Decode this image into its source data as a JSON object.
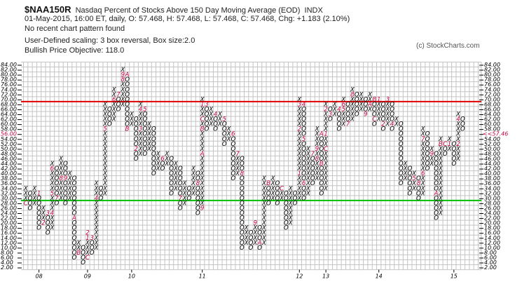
{
  "header": {
    "symbol": "$NAA150R",
    "name": "Nasdaq Percent of Stocks Above 150 Day Moving Average (EOD)",
    "exchange": "INDX",
    "quote_line": "01-May-2015, 16:00 ET, daily, O: 57.468, H: 57.468, L: 57.468, C: 57.468, Chg: +1.183 (2.10%)",
    "pattern": "No recent chart pattern found",
    "scaling": "User-Defined scaling: 3 box reversal, Box size:2.0",
    "objective": "Bullish Price Objective: 118.0"
  },
  "copyright": "(c) StockCharts.com",
  "chart_data": {
    "type": "point-and-figure",
    "box_size": 2,
    "reversal": 3,
    "ylim": [
      2,
      84
    ],
    "grid": true,
    "last_value_label": "<<57.46",
    "left_highlight_label": "56.00",
    "resistance_line": {
      "level": 69,
      "color": "#e00000"
    },
    "support_line": {
      "level": 29,
      "color": "#00c000"
    },
    "colors": {
      "x": "#000000",
      "o": "#000000",
      "month_marker": "#c0003c"
    },
    "year_labels": [
      {
        "col": 3,
        "text": "08"
      },
      {
        "col": 14,
        "text": "09"
      },
      {
        "col": 24,
        "text": "10"
      },
      {
        "col": 40,
        "text": "11"
      },
      {
        "col": 62,
        "text": "12"
      },
      {
        "col": 68,
        "text": "13"
      },
      {
        "col": 80,
        "text": "14"
      },
      {
        "col": 97,
        "text": "15"
      }
    ],
    "columns": [
      [
        "X",
        28,
        34
      ],
      [
        "O",
        26,
        32
      ],
      [
        "X",
        28,
        34
      ],
      [
        "O",
        18,
        32
      ],
      [
        "X",
        20,
        26
      ],
      [
        "O",
        16,
        24
      ],
      [
        "X",
        18,
        44
      ],
      [
        "O",
        28,
        42
      ],
      [
        "X",
        30,
        46
      ],
      [
        "O",
        28,
        44
      ],
      [
        "X",
        30,
        40
      ],
      [
        "O",
        6,
        38
      ],
      [
        "X",
        8,
        12
      ],
      [
        "O",
        4,
        10
      ],
      [
        "X",
        6,
        16
      ],
      [
        "O",
        8,
        14
      ],
      [
        "X",
        10,
        36
      ],
      [
        "O",
        30,
        34
      ],
      [
        "X",
        32,
        68
      ],
      [
        "O",
        60,
        66
      ],
      [
        "X",
        62,
        74
      ],
      [
        "O",
        66,
        72
      ],
      [
        "X",
        68,
        82
      ],
      [
        "O",
        58,
        80
      ],
      [
        "X",
        60,
        64
      ],
      [
        "O",
        46,
        62
      ],
      [
        "X",
        48,
        68
      ],
      [
        "O",
        48,
        66
      ],
      [
        "X",
        50,
        60
      ],
      [
        "O",
        40,
        58
      ],
      [
        "X",
        42,
        48
      ],
      [
        "O",
        42,
        46
      ],
      [
        "X",
        44,
        48
      ],
      [
        "O",
        32,
        46
      ],
      [
        "X",
        34,
        44
      ],
      [
        "O",
        26,
        42
      ],
      [
        "X",
        28,
        36
      ],
      [
        "O",
        30,
        34
      ],
      [
        "X",
        32,
        42
      ],
      [
        "O",
        24,
        40
      ],
      [
        "X",
        26,
        70
      ],
      [
        "O",
        58,
        68
      ],
      [
        "X",
        60,
        66
      ],
      [
        "O",
        58,
        64
      ],
      [
        "X",
        60,
        64
      ],
      [
        "O",
        52,
        62
      ],
      [
        "X",
        54,
        58
      ],
      [
        "O",
        38,
        56
      ],
      [
        "X",
        40,
        48
      ],
      [
        "O",
        10,
        46
      ],
      [
        "X",
        12,
        18
      ],
      [
        "O",
        10,
        16
      ],
      [
        "X",
        12,
        20
      ],
      [
        "O",
        10,
        18
      ],
      [
        "X",
        12,
        38
      ],
      [
        "O",
        28,
        36
      ],
      [
        "X",
        30,
        38
      ],
      [
        "O",
        28,
        36
      ],
      [
        "X",
        30,
        34
      ],
      [
        "O",
        18,
        32
      ],
      [
        "X",
        20,
        34
      ],
      [
        "O",
        28,
        32
      ],
      [
        "X",
        30,
        70
      ],
      [
        "O",
        30,
        68
      ],
      [
        "X",
        32,
        50
      ],
      [
        "O",
        36,
        48
      ],
      [
        "X",
        38,
        58
      ],
      [
        "O",
        32,
        56
      ],
      [
        "X",
        34,
        68
      ],
      [
        "O",
        62,
        66
      ],
      [
        "X",
        64,
        68
      ],
      [
        "O",
        58,
        66
      ],
      [
        "X",
        60,
        70
      ],
      [
        "O",
        60,
        68
      ],
      [
        "X",
        62,
        74
      ],
      [
        "O",
        64,
        72
      ],
      [
        "X",
        66,
        72
      ],
      [
        "O",
        64,
        70
      ],
      [
        "X",
        66,
        72
      ],
      [
        "O",
        60,
        70
      ],
      [
        "X",
        62,
        70
      ],
      [
        "O",
        58,
        68
      ],
      [
        "X",
        60,
        70
      ],
      [
        "O",
        58,
        68
      ],
      [
        "X",
        60,
        62
      ],
      [
        "O",
        36,
        60
      ],
      [
        "X",
        38,
        44
      ],
      [
        "O",
        32,
        42
      ],
      [
        "X",
        34,
        40
      ],
      [
        "O",
        30,
        38
      ],
      [
        "X",
        32,
        58
      ],
      [
        "O",
        42,
        56
      ],
      [
        "X",
        44,
        50
      ],
      [
        "O",
        22,
        48
      ],
      [
        "X",
        24,
        54
      ],
      [
        "O",
        48,
        52
      ],
      [
        "X",
        50,
        54
      ],
      [
        "O",
        44,
        52
      ],
      [
        "X",
        46,
        64
      ],
      [
        "O",
        58,
        62
      ]
    ],
    "month_markers": [
      [
        0,
        28,
        "C"
      ],
      [
        3,
        32,
        "1"
      ],
      [
        4,
        20,
        "2"
      ],
      [
        5,
        24,
        "3"
      ],
      [
        6,
        24,
        "4"
      ],
      [
        6,
        32,
        "5"
      ],
      [
        6,
        42,
        "6"
      ],
      [
        7,
        30,
        "7"
      ],
      [
        8,
        38,
        "8"
      ],
      [
        9,
        38,
        "9"
      ],
      [
        11,
        22,
        "A"
      ],
      [
        12,
        8,
        "B"
      ],
      [
        14,
        6,
        "C"
      ],
      [
        14,
        14,
        "1"
      ],
      [
        14,
        16,
        "2"
      ],
      [
        15,
        14,
        "3"
      ],
      [
        16,
        30,
        "4"
      ],
      [
        18,
        58,
        "5"
      ],
      [
        20,
        70,
        "6"
      ],
      [
        21,
        72,
        "7"
      ],
      [
        22,
        78,
        "8"
      ],
      [
        22,
        80,
        "9"
      ],
      [
        23,
        80,
        "A"
      ],
      [
        23,
        58,
        "B"
      ],
      [
        24,
        58,
        "1"
      ],
      [
        25,
        50,
        "2"
      ],
      [
        26,
        58,
        "3"
      ],
      [
        26,
        66,
        "4"
      ],
      [
        27,
        66,
        "5"
      ],
      [
        31,
        46,
        "6"
      ],
      [
        35,
        30,
        "7"
      ],
      [
        39,
        36,
        "8"
      ],
      [
        40,
        26,
        "9"
      ],
      [
        40,
        48,
        "A"
      ],
      [
        40,
        58,
        "B"
      ],
      [
        40,
        62,
        "C"
      ],
      [
        40,
        68,
        "1"
      ],
      [
        41,
        68,
        "3"
      ],
      [
        43,
        64,
        "4"
      ],
      [
        45,
        62,
        "5"
      ],
      [
        47,
        56,
        "6"
      ],
      [
        48,
        48,
        "7"
      ],
      [
        49,
        40,
        "8"
      ],
      [
        52,
        20,
        "9"
      ],
      [
        53,
        12,
        "A"
      ],
      [
        55,
        36,
        "B"
      ],
      [
        58,
        34,
        "C"
      ],
      [
        62,
        40,
        "1"
      ],
      [
        62,
        58,
        "2"
      ],
      [
        62,
        68,
        "3"
      ],
      [
        63,
        68,
        "4"
      ],
      [
        63,
        54,
        "5"
      ],
      [
        63,
        36,
        "6"
      ],
      [
        65,
        48,
        "7"
      ],
      [
        66,
        46,
        "8"
      ],
      [
        66,
        50,
        "9"
      ],
      [
        67,
        56,
        "A"
      ],
      [
        67,
        44,
        "B"
      ],
      [
        68,
        50,
        "C"
      ],
      [
        68,
        56,
        "1"
      ],
      [
        68,
        66,
        "2"
      ],
      [
        69,
        64,
        "3"
      ],
      [
        71,
        66,
        "4"
      ],
      [
        72,
        66,
        "5"
      ],
      [
        72,
        68,
        "6"
      ],
      [
        73,
        60,
        "7"
      ],
      [
        74,
        72,
        "8"
      ],
      [
        77,
        64,
        "9"
      ],
      [
        78,
        68,
        "A"
      ],
      [
        79,
        70,
        "B"
      ],
      [
        79,
        62,
        "C"
      ],
      [
        80,
        70,
        "1"
      ],
      [
        81,
        60,
        "2"
      ],
      [
        82,
        70,
        "3"
      ],
      [
        83,
        60,
        "4"
      ],
      [
        88,
        38,
        "5"
      ],
      [
        90,
        40,
        "6"
      ],
      [
        89,
        36,
        "8"
      ],
      [
        90,
        54,
        "7"
      ],
      [
        92,
        48,
        "9"
      ],
      [
        93,
        32,
        "A"
      ],
      [
        94,
        52,
        "B"
      ],
      [
        95,
        52,
        "C"
      ],
      [
        96,
        52,
        "1"
      ],
      [
        98,
        52,
        "2"
      ],
      [
        98,
        62,
        "4"
      ]
    ]
  }
}
